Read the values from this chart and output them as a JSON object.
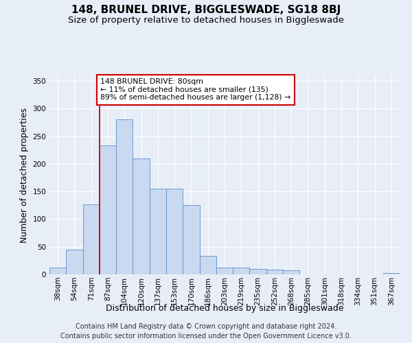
{
  "title": "148, BRUNEL DRIVE, BIGGLESWADE, SG18 8BJ",
  "subtitle": "Size of property relative to detached houses in Biggleswade",
  "xlabel": "Distribution of detached houses by size in Biggleswade",
  "ylabel": "Number of detached properties",
  "footer_line1": "Contains HM Land Registry data © Crown copyright and database right 2024.",
  "footer_line2": "Contains public sector information licensed under the Open Government Licence v3.0.",
  "bin_labels": [
    "38sqm",
    "54sqm",
    "71sqm",
    "87sqm",
    "104sqm",
    "120sqm",
    "137sqm",
    "153sqm",
    "170sqm",
    "186sqm",
    "203sqm",
    "219sqm",
    "235sqm",
    "252sqm",
    "268sqm",
    "285sqm",
    "301sqm",
    "318sqm",
    "334sqm",
    "351sqm",
    "367sqm"
  ],
  "bar_values": [
    13,
    45,
    127,
    233,
    281,
    210,
    155,
    155,
    125,
    33,
    12,
    12,
    10,
    9,
    7,
    0,
    0,
    0,
    0,
    0,
    3
  ],
  "bar_color": "#c9d9f0",
  "bar_edge_color": "#5b8fc9",
  "vline_x_index": 2,
  "vline_color": "#cc0000",
  "annotation_text": "148 BRUNEL DRIVE: 80sqm\n← 11% of detached houses are smaller (135)\n89% of semi-detached houses are larger (1,128) →",
  "annotation_box_color": "#ffffff",
  "annotation_box_edge": "#cc0000",
  "ylim": [
    0,
    360
  ],
  "yticks": [
    0,
    50,
    100,
    150,
    200,
    250,
    300,
    350
  ],
  "bg_color": "#e8eef8",
  "plot_bg_color": "#e8eef8",
  "grid_color": "#ffffff",
  "title_fontsize": 11,
  "subtitle_fontsize": 9.5,
  "axis_label_fontsize": 9,
  "tick_fontsize": 7.5,
  "footer_fontsize": 7
}
